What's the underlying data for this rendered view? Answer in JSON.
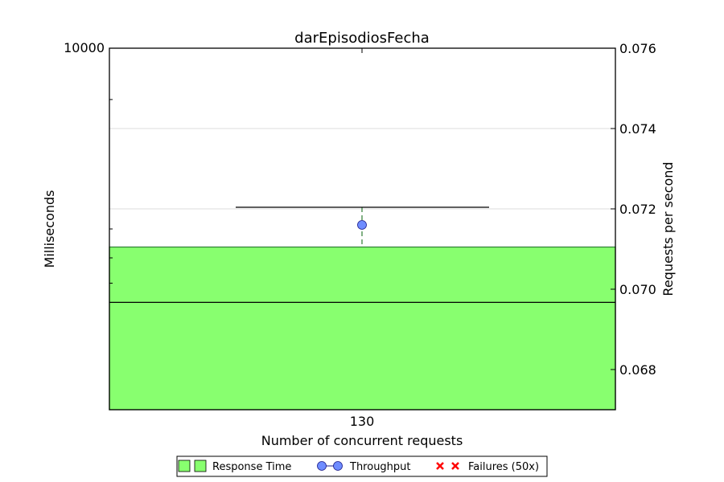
{
  "chart_data": {
    "type": "box",
    "title": "darEpisodiosFecha",
    "xlabel": "Number of concurrent requests",
    "ylabel_left": "Milliseconds",
    "ylabel_right": "Requests per second",
    "categories": [
      "130"
    ],
    "left_axis": {
      "scale": "log",
      "printed_ticks": [
        "10000"
      ],
      "top_value": 10000
    },
    "right_axis": {
      "ylim": [
        0.067,
        0.076
      ],
      "ticks": [
        "0.068",
        "0.070",
        "0.072",
        "0.074",
        "0.076"
      ]
    },
    "response_time_box": {
      "whisker_top_fraction": 0.56,
      "q3_fraction": 0.45,
      "median_fraction": 0.297,
      "whisker_visible_top": true
    },
    "throughput": {
      "x": "130",
      "value": 0.0716
    },
    "grid": true,
    "legend_position": "bottom-center",
    "legend": [
      {
        "label": "Response Time",
        "marker": "box",
        "color": "#88ff6f"
      },
      {
        "label": "Throughput",
        "marker": "circle-line",
        "color": "#6e8cff"
      },
      {
        "label": "Failures (50x)",
        "marker": "x",
        "color": "#ff0000"
      }
    ],
    "colors": {
      "box_fill": "#88ff6f",
      "box_edge": "#2e7d32",
      "throughput": "#6e8cff",
      "failure": "#ff0000",
      "grid": "#dddddd"
    }
  }
}
